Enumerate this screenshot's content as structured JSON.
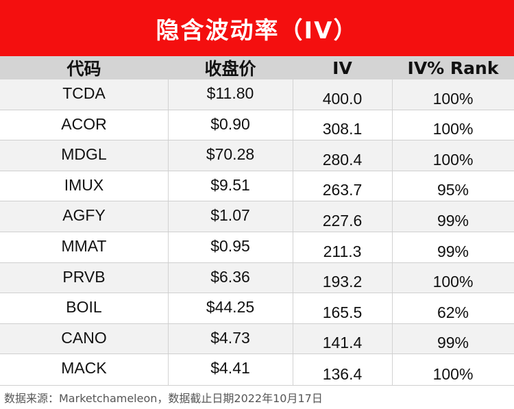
{
  "title": "隐含波动率（IV）",
  "columns": [
    "代码",
    "收盘价",
    "IV",
    "IV% Rank"
  ],
  "rows": [
    {
      "ticker": "TCDA",
      "close": "$11.80",
      "iv": "400.0",
      "rank": "100%"
    },
    {
      "ticker": "ACOR",
      "close": "$0.90",
      "iv": "308.1",
      "rank": "100%"
    },
    {
      "ticker": "MDGL",
      "close": "$70.28",
      "iv": "280.4",
      "rank": "100%"
    },
    {
      "ticker": "IMUX",
      "close": "$9.51",
      "iv": "263.7",
      "rank": "95%"
    },
    {
      "ticker": "AGFY",
      "close": "$1.07",
      "iv": "227.6",
      "rank": "99%"
    },
    {
      "ticker": "MMAT",
      "close": "$0.95",
      "iv": "211.3",
      "rank": "99%"
    },
    {
      "ticker": "PRVB",
      "close": "$6.36",
      "iv": "193.2",
      "rank": "100%"
    },
    {
      "ticker": "BOIL",
      "close": "$44.25",
      "iv": "165.5",
      "rank": "62%"
    },
    {
      "ticker": "CANO",
      "close": "$4.73",
      "iv": "141.4",
      "rank": "99%"
    },
    {
      "ticker": "MACK",
      "close": "$4.41",
      "iv": "136.4",
      "rank": "100%"
    }
  ],
  "footer": "数据来源：Marketchameleon，数据截止日期2022年10月17日",
  "colors": {
    "title_background": "#f40f0f",
    "header_background": "#d4d4d4",
    "alt_row_background": "#f2f2f2"
  }
}
